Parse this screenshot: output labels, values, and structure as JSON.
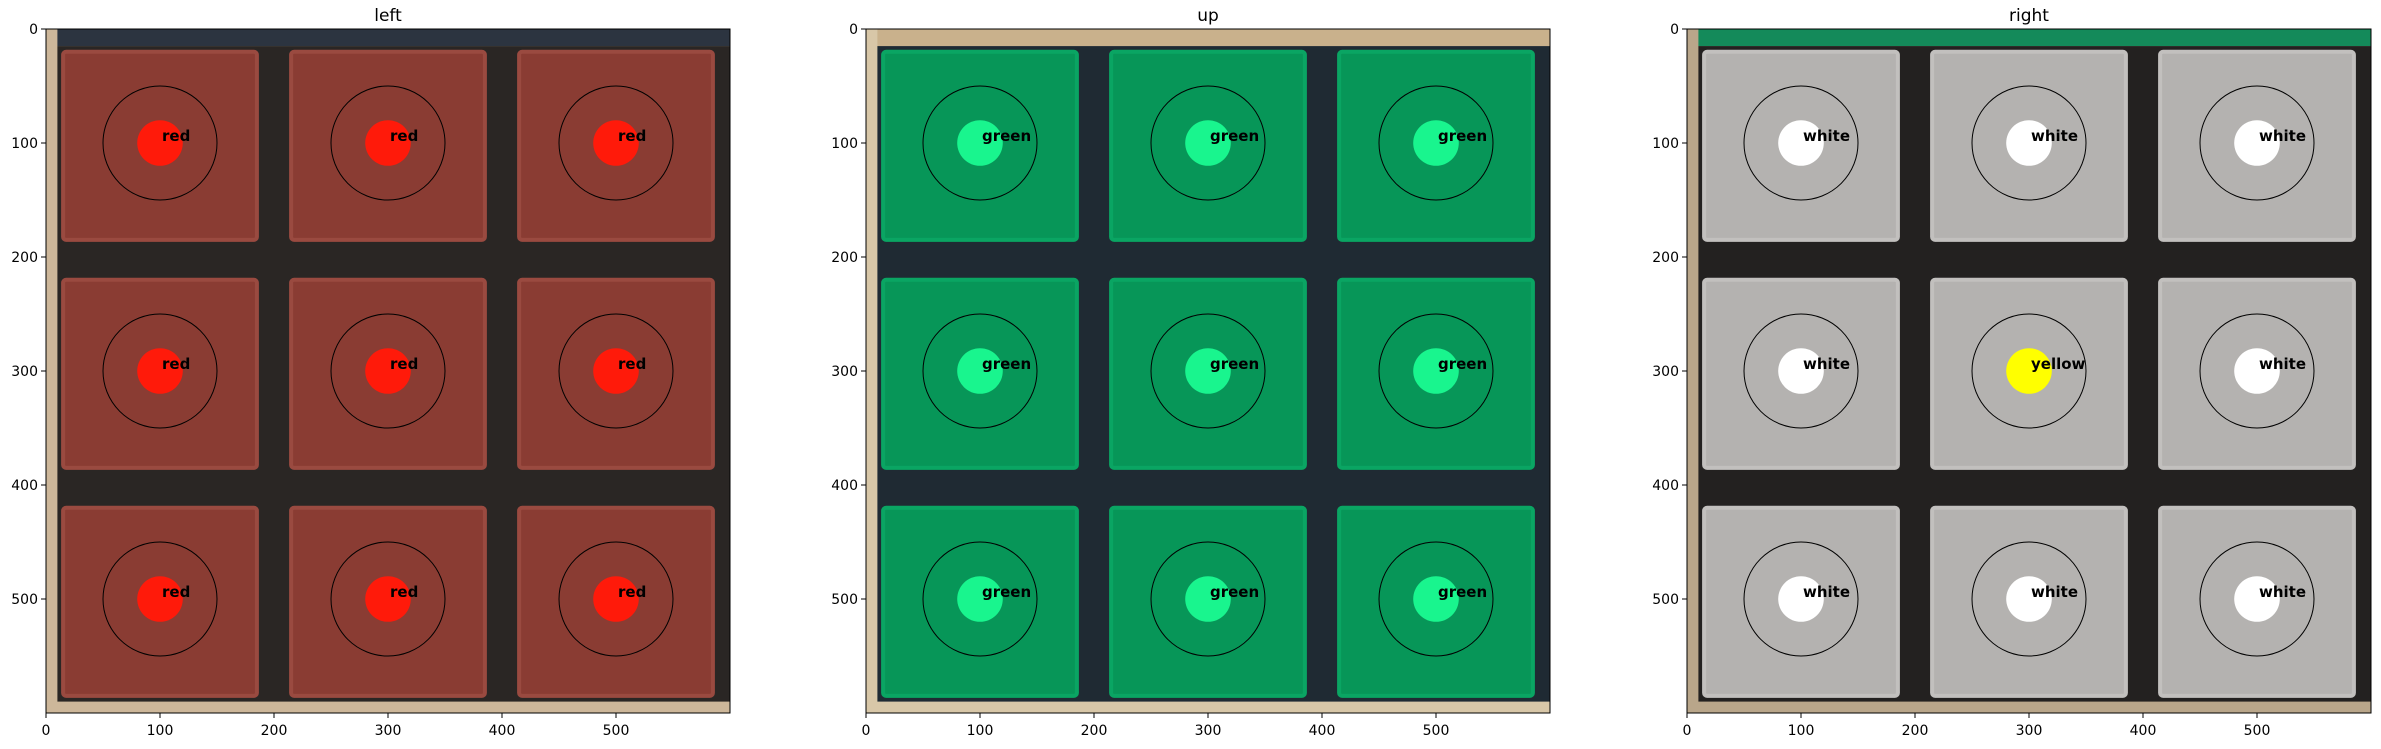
{
  "chart_data": [
    {
      "type": "scatter",
      "title": "left",
      "face_colors": {
        "tile": "#8a3c33",
        "tile_edge": "#9a4a40",
        "grid": "#2a2624",
        "frame": "#cdb79a",
        "top_band": "#2c3440"
      },
      "xticks": [
        0,
        100,
        200,
        300,
        400,
        500
      ],
      "yticks": [
        0,
        100,
        200,
        300,
        400,
        500
      ],
      "xlim": [
        0,
        600
      ],
      "ylim": [
        600,
        0
      ],
      "stickers": [
        {
          "x": 100,
          "y": 100,
          "label": "red",
          "color": "#ff1a0a"
        },
        {
          "x": 300,
          "y": 100,
          "label": "red",
          "color": "#ff1a0a"
        },
        {
          "x": 500,
          "y": 100,
          "label": "red",
          "color": "#ff1a0a"
        },
        {
          "x": 100,
          "y": 300,
          "label": "red",
          "color": "#ff1a0a"
        },
        {
          "x": 300,
          "y": 300,
          "label": "red",
          "color": "#ff1a0a"
        },
        {
          "x": 500,
          "y": 300,
          "label": "red",
          "color": "#ff1a0a"
        },
        {
          "x": 100,
          "y": 500,
          "label": "red",
          "color": "#ff1a0a"
        },
        {
          "x": 300,
          "y": 500,
          "label": "red",
          "color": "#ff1a0a"
        },
        {
          "x": 500,
          "y": 500,
          "label": "red",
          "color": "#ff1a0a"
        }
      ]
    },
    {
      "type": "scatter",
      "title": "up",
      "face_colors": {
        "tile": "#079658",
        "tile_edge": "#0aa563",
        "grid": "#1f2a33",
        "frame": "#d8c7a8",
        "top_band": "#c9b18c"
      },
      "xticks": [
        0,
        100,
        200,
        300,
        400,
        500
      ],
      "yticks": [
        0,
        100,
        200,
        300,
        400,
        500
      ],
      "xlim": [
        0,
        600
      ],
      "ylim": [
        600,
        0
      ],
      "stickers": [
        {
          "x": 100,
          "y": 100,
          "label": "green",
          "color": "#19f58e"
        },
        {
          "x": 300,
          "y": 100,
          "label": "green",
          "color": "#19f58e"
        },
        {
          "x": 500,
          "y": 100,
          "label": "green",
          "color": "#19f58e"
        },
        {
          "x": 100,
          "y": 300,
          "label": "green",
          "color": "#19f58e"
        },
        {
          "x": 300,
          "y": 300,
          "label": "green",
          "color": "#19f58e"
        },
        {
          "x": 500,
          "y": 300,
          "label": "green",
          "color": "#19f58e"
        },
        {
          "x": 100,
          "y": 500,
          "label": "green",
          "color": "#19f58e"
        },
        {
          "x": 300,
          "y": 500,
          "label": "green",
          "color": "#19f58e"
        },
        {
          "x": 500,
          "y": 500,
          "label": "green",
          "color": "#19f58e"
        }
      ]
    },
    {
      "type": "scatter",
      "title": "right",
      "face_colors": {
        "tile": "#b4b2b0",
        "tile_edge": "#c2c0be",
        "grid": "#232120",
        "frame": "#b9a68a",
        "top_band": "#148a5a"
      },
      "xticks": [
        0,
        100,
        200,
        300,
        400,
        500
      ],
      "yticks": [
        0,
        100,
        200,
        300,
        400,
        500
      ],
      "xlim": [
        0,
        600
      ],
      "ylim": [
        600,
        0
      ],
      "stickers": [
        {
          "x": 100,
          "y": 100,
          "label": "white",
          "color": "#ffffff"
        },
        {
          "x": 300,
          "y": 100,
          "label": "white",
          "color": "#ffffff"
        },
        {
          "x": 500,
          "y": 100,
          "label": "white",
          "color": "#ffffff"
        },
        {
          "x": 100,
          "y": 300,
          "label": "white",
          "color": "#ffffff"
        },
        {
          "x": 300,
          "y": 300,
          "label": "yellow",
          "color": "#ffff00"
        },
        {
          "x": 500,
          "y": 300,
          "label": "white",
          "color": "#ffffff"
        },
        {
          "x": 100,
          "y": 500,
          "label": "white",
          "color": "#ffffff"
        },
        {
          "x": 300,
          "y": 500,
          "label": "white",
          "color": "#ffffff"
        },
        {
          "x": 500,
          "y": 500,
          "label": "white",
          "color": "#ffffff"
        }
      ]
    }
  ]
}
